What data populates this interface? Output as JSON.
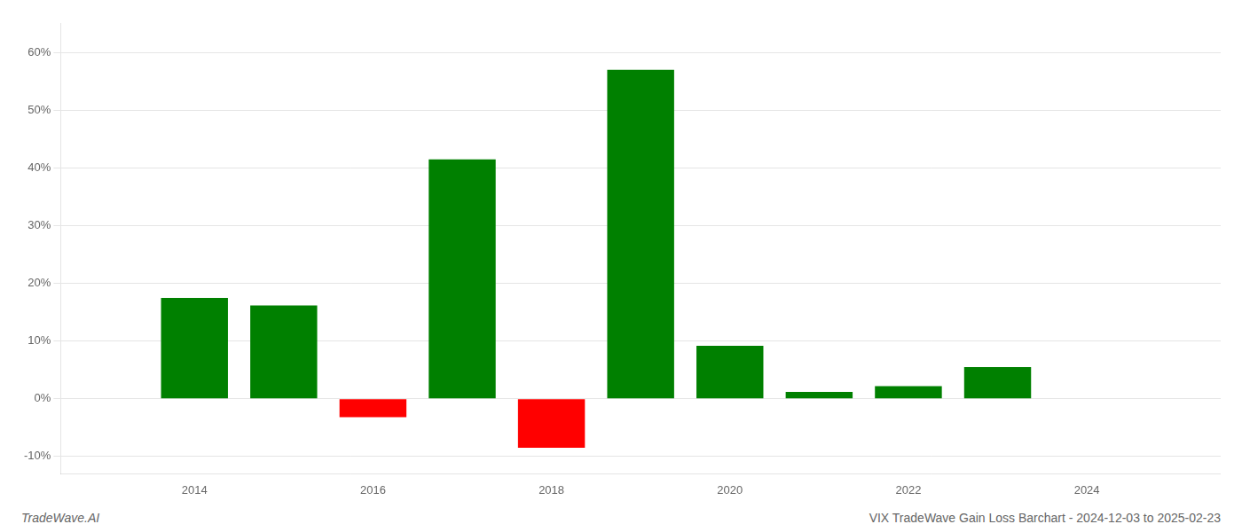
{
  "chart_data": {
    "type": "bar",
    "x": [
      2014,
      2015,
      2016,
      2017,
      2018,
      2019,
      2020,
      2021,
      2022,
      2023,
      2024
    ],
    "values": [
      17.5,
      16.2,
      -3.2,
      41.5,
      -8.5,
      57.0,
      9.2,
      1.2,
      2.2,
      5.5,
      0.0
    ],
    "colors": [
      "#008000",
      "#008000",
      "#ff0000",
      "#008000",
      "#ff0000",
      "#008000",
      "#008000",
      "#008000",
      "#008000",
      "#008000",
      "#008000"
    ],
    "xlim": [
      2012.5,
      2025.5
    ],
    "xticks": [
      2014,
      2016,
      2018,
      2020,
      2022,
      2024
    ],
    "ylim": [
      -13,
      65
    ],
    "yticks": [
      {
        "value": -10,
        "label": "-10%"
      },
      {
        "value": 0,
        "label": "0%"
      },
      {
        "value": 10,
        "label": "10%"
      },
      {
        "value": 20,
        "label": "20%"
      },
      {
        "value": 30,
        "label": "30%"
      },
      {
        "value": 40,
        "label": "40%"
      },
      {
        "value": 50,
        "label": "50%"
      },
      {
        "value": 60,
        "label": "60%"
      }
    ],
    "grid": true,
    "annotations": [
      "TradeWave.AI",
      "VIX TradeWave Gain Loss Barchart - 2024-12-03 to 2025-02-23"
    ]
  }
}
